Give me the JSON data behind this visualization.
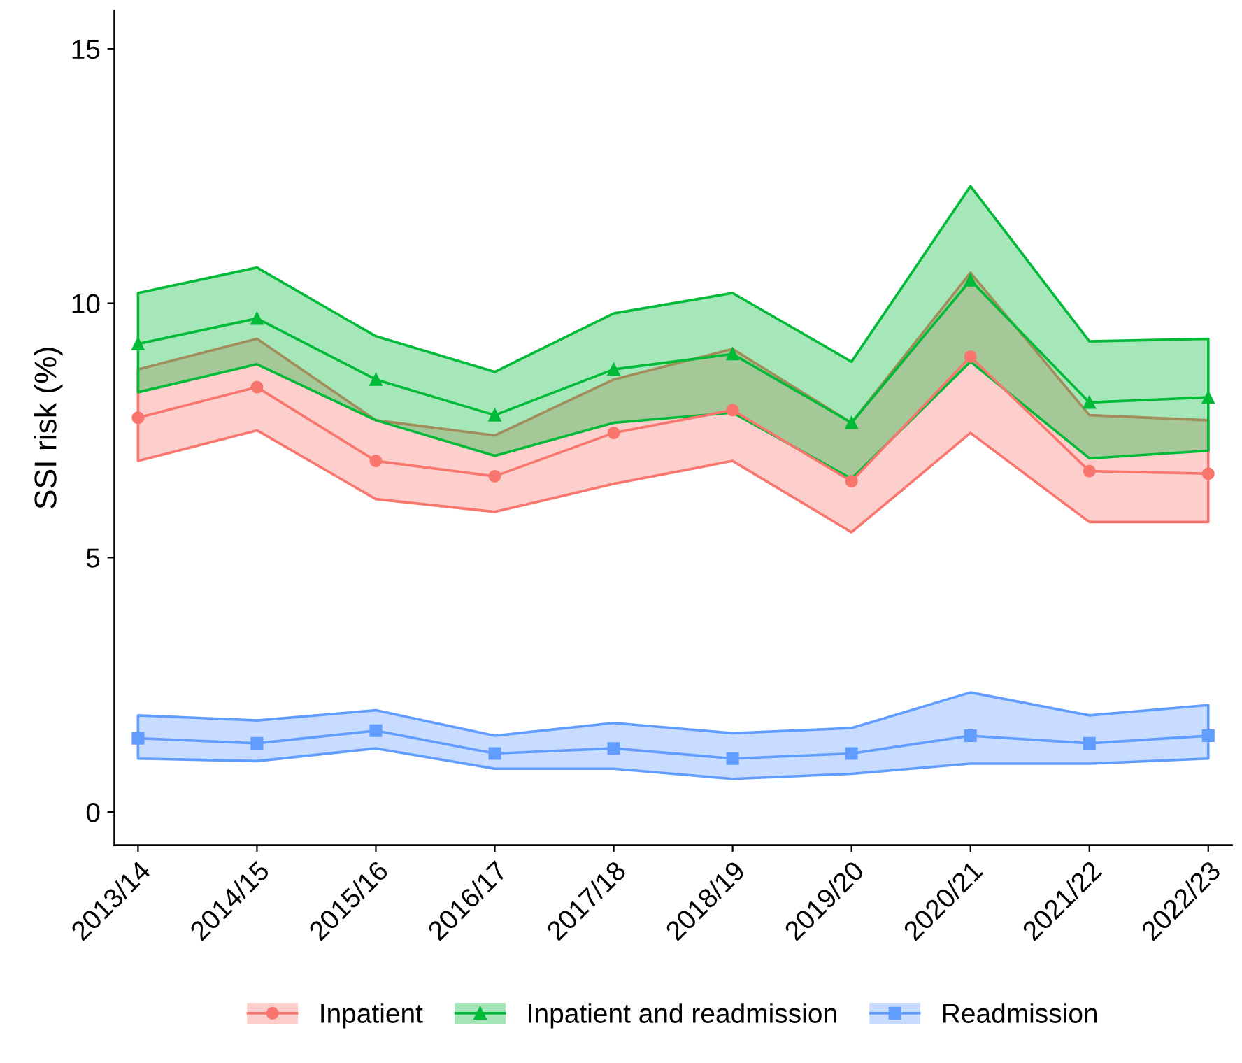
{
  "chart_data": {
    "type": "line",
    "ylabel": "SSI risk (%)",
    "categories": [
      "2013/14",
      "2014/15",
      "2015/16",
      "2016/17",
      "2017/18",
      "2018/19",
      "2019/20",
      "2020/21",
      "2021/22",
      "2022/23"
    ],
    "ylim": [
      -0.65,
      15.75
    ],
    "yticks": [
      0,
      5,
      10,
      15
    ],
    "grid": false,
    "legend": "bottom",
    "line_style": "solid",
    "series": [
      {
        "name": "Inpatient",
        "color": "#f8766d",
        "marker": "circle",
        "values": [
          7.75,
          8.35,
          6.9,
          6.6,
          7.45,
          7.9,
          6.5,
          8.95,
          6.7,
          6.65
        ],
        "lower": [
          6.9,
          7.5,
          6.15,
          5.9,
          6.45,
          6.9,
          5.5,
          7.45,
          5.7,
          5.7
        ],
        "upper": [
          8.7,
          9.3,
          7.7,
          7.4,
          8.5,
          9.1,
          7.65,
          10.6,
          7.8,
          7.7
        ]
      },
      {
        "name": "Inpatient and readmission",
        "color": "#00ba38",
        "marker": "triangle",
        "values": [
          9.2,
          9.7,
          8.5,
          7.8,
          8.7,
          9.0,
          7.65,
          10.45,
          8.05,
          8.15
        ],
        "lower": [
          8.25,
          8.8,
          7.7,
          7.0,
          7.65,
          7.85,
          6.55,
          8.85,
          6.95,
          7.1
        ],
        "upper": [
          10.2,
          10.7,
          9.35,
          8.65,
          9.8,
          10.2,
          8.85,
          12.3,
          9.25,
          9.3
        ]
      },
      {
        "name": "Readmission",
        "color": "#619cff",
        "marker": "square",
        "values": [
          1.45,
          1.35,
          1.6,
          1.15,
          1.25,
          1.05,
          1.15,
          1.5,
          1.35,
          1.5
        ],
        "lower": [
          1.05,
          1.0,
          1.25,
          0.85,
          0.85,
          0.65,
          0.75,
          0.95,
          0.95,
          1.05
        ],
        "upper": [
          1.9,
          1.8,
          2.0,
          1.5,
          1.75,
          1.55,
          1.65,
          2.35,
          1.9,
          2.1
        ]
      }
    ]
  }
}
